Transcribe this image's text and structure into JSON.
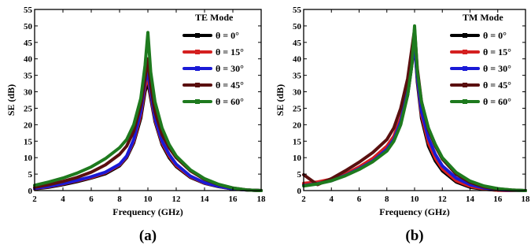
{
  "figure_labels": [
    "(a)",
    "(b)"
  ],
  "chart_data": [
    {
      "type": "line",
      "panel_label": "(a)",
      "legend_title": "TE Mode",
      "legend_position": "top-right",
      "xlabel": "Frequency (GHz)",
      "ylabel": "SE (dB)",
      "xlim": [
        2,
        18
      ],
      "ylim": [
        0,
        55
      ],
      "xticks": [
        2,
        4,
        6,
        8,
        10,
        12,
        14,
        16,
        18
      ],
      "yticks": [
        0,
        5,
        10,
        15,
        20,
        25,
        30,
        35,
        40,
        45,
        50,
        55
      ],
      "grid": false,
      "x": [
        2,
        3,
        4,
        5,
        6,
        7,
        8,
        8.5,
        9,
        9.5,
        9.8,
        10,
        10.2,
        10.5,
        11,
        11.5,
        12,
        13,
        14,
        15,
        16,
        17,
        18
      ],
      "series": [
        {
          "name": "θ = 0°",
          "color": "#000000",
          "values": [
            0.5,
            1.0,
            1.8,
            2.7,
            3.8,
            5.1,
            7.5,
            10.0,
            14.5,
            22.0,
            30.0,
            33.0,
            28.0,
            21.0,
            14.0,
            10.0,
            7.3,
            4.0,
            2.2,
            1.2,
            0.5,
            0.2,
            0.0
          ]
        },
        {
          "name": "θ = 15°",
          "color": "#d42020",
          "values": [
            0.6,
            1.2,
            2.0,
            3.0,
            4.0,
            5.4,
            7.8,
            10.3,
            15.0,
            23.0,
            31.5,
            34.5,
            29.0,
            21.5,
            14.5,
            10.5,
            7.6,
            4.2,
            2.3,
            1.3,
            0.5,
            0.2,
            0.0
          ]
        },
        {
          "name": "θ = 30°",
          "color": "#1a1ad6",
          "values": [
            0.7,
            1.3,
            2.1,
            3.1,
            4.2,
            5.6,
            8.0,
            10.5,
            15.5,
            24.0,
            33.0,
            36.0,
            30.0,
            22.0,
            15.0,
            11.0,
            8.0,
            4.4,
            2.4,
            1.3,
            0.5,
            0.2,
            0.0
          ]
        },
        {
          "name": "θ = 45°",
          "color": "#5a0f0f",
          "values": [
            1.0,
            1.8,
            2.8,
            4.0,
            5.6,
            7.8,
            11.0,
            13.5,
            18.0,
            26.0,
            34.0,
            40.0,
            32.0,
            24.0,
            17.0,
            13.0,
            10.0,
            6.0,
            3.4,
            1.8,
            0.8,
            0.2,
            0.0
          ]
        },
        {
          "name": "θ = 60°",
          "color": "#1e7a1e",
          "values": [
            1.6,
            2.6,
            3.8,
            5.3,
            7.2,
            9.7,
            13.0,
            15.5,
            20.0,
            28.0,
            38.0,
            48.0,
            36.0,
            27.0,
            19.0,
            14.0,
            10.5,
            6.3,
            3.6,
            1.9,
            0.8,
            0.2,
            0.0
          ]
        }
      ]
    },
    {
      "type": "line",
      "panel_label": "(b)",
      "legend_title": "TM Mode",
      "legend_position": "top-right",
      "xlabel": "Frequency (GHz)",
      "ylabel": "SE (dB)",
      "xlim": [
        2,
        18
      ],
      "ylim": [
        0,
        55
      ],
      "xticks": [
        2,
        4,
        6,
        8,
        10,
        12,
        14,
        16,
        18
      ],
      "yticks": [
        0,
        5,
        10,
        15,
        20,
        25,
        30,
        35,
        40,
        45,
        50,
        55
      ],
      "grid": false,
      "x": [
        2,
        3,
        4,
        5,
        6,
        7,
        8,
        8.5,
        9,
        9.5,
        9.8,
        10,
        10.2,
        10.5,
        11,
        11.5,
        12,
        13,
        14,
        15,
        16,
        17,
        18
      ],
      "series": [
        {
          "name": "θ = 0°",
          "color": "#000000",
          "values": [
            1.8,
            2.3,
            3.2,
            4.8,
            7.0,
            9.5,
            13.0,
            16.0,
            21.0,
            29.0,
            38.0,
            45.0,
            33.0,
            22.0,
            13.5,
            9.0,
            6.0,
            2.6,
            1.0,
            0.4,
            0.1,
            0.0,
            0.0
          ]
        },
        {
          "name": "θ = 15°",
          "color": "#d42020",
          "values": [
            2.2,
            2.6,
            3.5,
            5.0,
            7.2,
            9.8,
            13.5,
            16.5,
            22.0,
            31.0,
            40.0,
            47.0,
            34.0,
            23.0,
            14.5,
            9.8,
            6.6,
            3.0,
            1.3,
            0.5,
            0.1,
            0.0,
            0.0
          ]
        },
        {
          "name": "θ = 30°",
          "color": "#1a1ad6",
          "values": [
            1.5,
            2.1,
            3.0,
            4.6,
            6.6,
            9.0,
            12.5,
            15.5,
            21.0,
            30.0,
            39.0,
            44.0,
            34.5,
            24.0,
            16.0,
            11.0,
            7.5,
            3.8,
            1.8,
            0.8,
            0.3,
            0.1,
            0.0
          ]
        },
        {
          "name": "θ = 45°",
          "color": "#5a0f0f",
          "values": [
            4.8,
            1.8,
            3.6,
            6.0,
            8.6,
            11.6,
            15.5,
            19.0,
            25.0,
            34.0,
            43.0,
            49.0,
            37.0,
            27.0,
            18.5,
            13.5,
            9.6,
            5.0,
            2.5,
            1.1,
            0.5,
            0.2,
            0.0
          ]
        },
        {
          "name": "θ = 60°",
          "color": "#1e7a1e",
          "values": [
            1.4,
            2.0,
            3.0,
            4.5,
            6.4,
            8.8,
            12.0,
            15.0,
            20.0,
            29.0,
            38.0,
            50.0,
            36.0,
            27.0,
            19.0,
            14.0,
            10.0,
            5.5,
            2.9,
            1.4,
            0.6,
            0.2,
            0.0
          ]
        }
      ]
    }
  ]
}
